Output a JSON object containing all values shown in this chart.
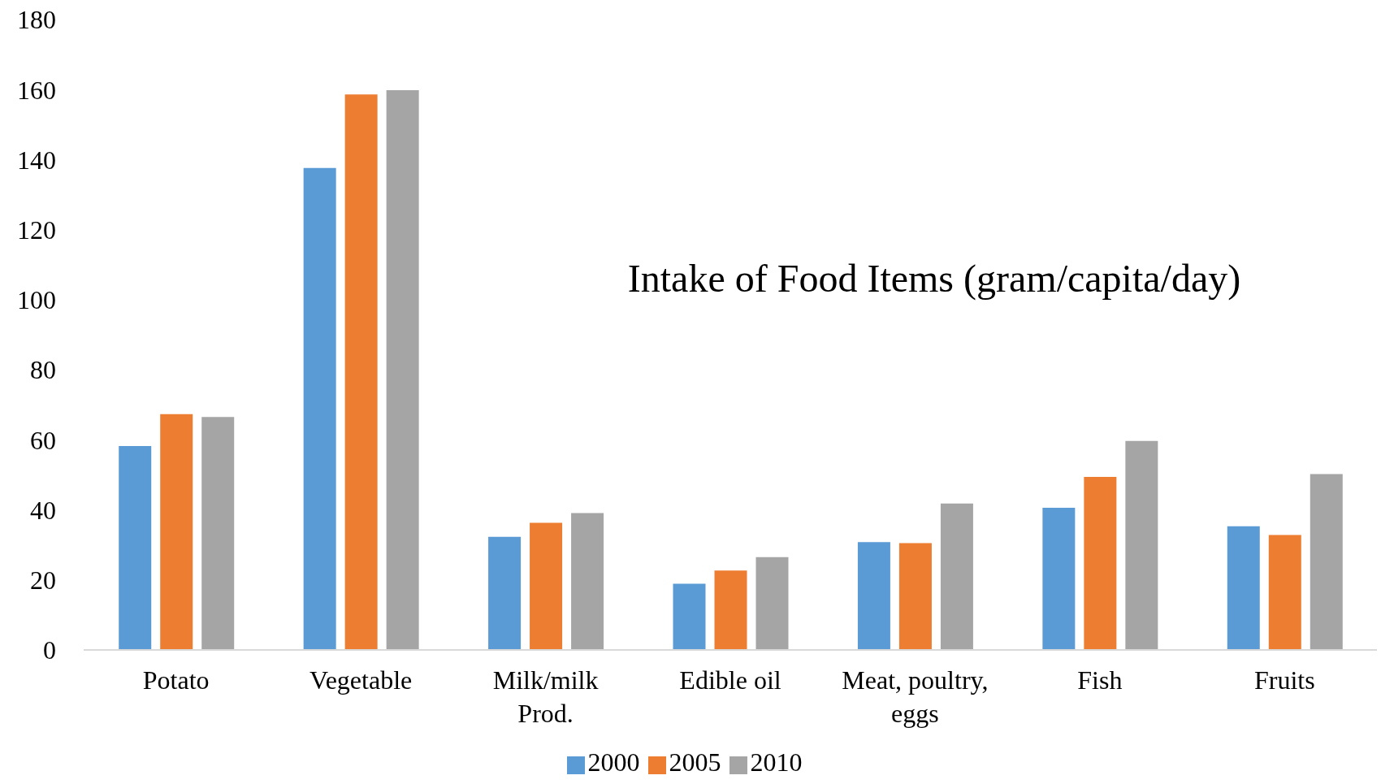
{
  "chart_data": {
    "type": "bar",
    "title": "Intake of Food Items (gram/capita/day)",
    "categories": [
      "Potato",
      "Vegetable",
      "Milk/milk Prod.",
      "Edible oil",
      "Meat, poultry, eggs",
      "Fish",
      "Fruits"
    ],
    "series": [
      {
        "name": "2000",
        "color": "#5b9bd5",
        "values": [
          58.2,
          137.6,
          32.3,
          18.9,
          30.8,
          40.6,
          35.3
        ]
      },
      {
        "name": "2005",
        "color": "#ed7d31",
        "values": [
          67.3,
          158.6,
          36.3,
          22.7,
          30.5,
          49.4,
          32.8
        ]
      },
      {
        "name": "2010",
        "color": "#a5a5a5",
        "values": [
          66.5,
          159.8,
          39.1,
          26.5,
          41.8,
          59.7,
          50.2
        ]
      }
    ],
    "ylim": [
      0,
      180
    ],
    "yticks": [
      0,
      20,
      40,
      60,
      80,
      100,
      120,
      140,
      160,
      180
    ],
    "legend": "bottom"
  }
}
